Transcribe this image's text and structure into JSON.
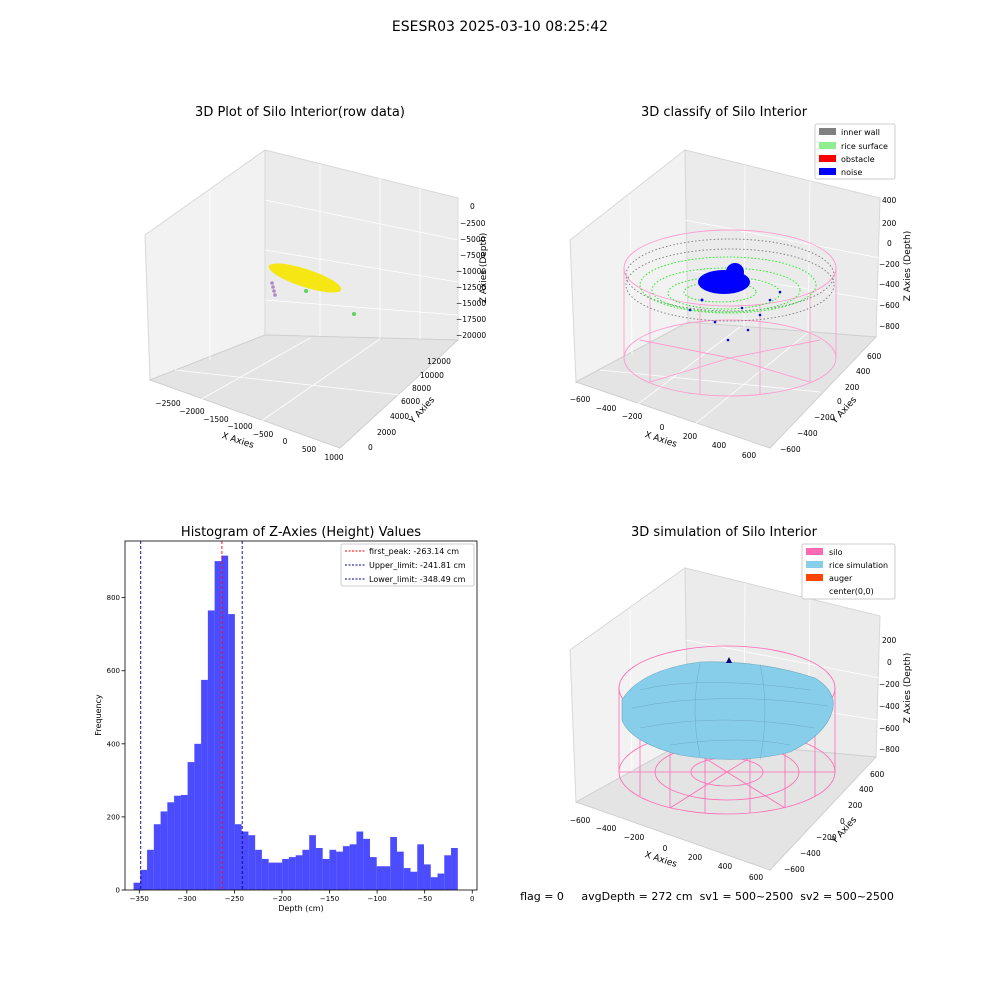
{
  "figure": {
    "suptitle": "ESESR03 2025-03-10 08:25:42",
    "footer": "flag = 0     avgDepth = 272 cm  sv1 = 500~2500  sv2 = 500~2500"
  },
  "chart_data": [
    {
      "type": "scatter",
      "projection": "3d",
      "title": "3D Plot of Silo Interior(row data)",
      "xlabel": "X Axies",
      "ylabel": "Y Axies",
      "zlabel": "Z Axies (Depth)",
      "x_ticks": [
        "−2500",
        "−2000",
        "−1500",
        "−1000",
        "−500",
        "0",
        "500",
        "1000"
      ],
      "y_ticks": [
        "0",
        "2000",
        "4000",
        "6000",
        "8000",
        "10000",
        "12000"
      ],
      "z_ticks": [
        "0",
        "−2500",
        "−5000",
        "−7500",
        "−10000",
        "−12500",
        "−15000",
        "−17500",
        "−20000"
      ],
      "grid": true,
      "colors": {
        "main": "#f5e614",
        "scatter_green": "#5cd65c",
        "scatter_purple": "#b088c8"
      }
    },
    {
      "type": "scatter",
      "projection": "3d",
      "title": "3D classify of Silo Interior",
      "xlabel": "X Axies",
      "ylabel": "Y Axies",
      "zlabel": "Z Axies (Depth)",
      "x_ticks": [
        "−600",
        "−400",
        "−200",
        "0",
        "200",
        "400",
        "600"
      ],
      "y_ticks": [
        "−600",
        "−400",
        "−200",
        "0",
        "200",
        "400",
        "600"
      ],
      "z_ticks": [
        "400",
        "200",
        "0",
        "−200",
        "−400",
        "−600",
        "−800"
      ],
      "legend": [
        {
          "label": "inner wall",
          "color": "#808080"
        },
        {
          "label": "rice surface",
          "color": "#90ee90"
        },
        {
          "label": "obstacle",
          "color": "#ff0000"
        },
        {
          "label": "noise",
          "color": "#0000ff"
        }
      ],
      "legend_position": "upper-right",
      "grid": true
    },
    {
      "type": "bar",
      "title": "Histogram of Z-Axies (Height) Values",
      "xlabel": "Depth (cm)",
      "ylabel": "Frequency",
      "xlim": [
        -365,
        5
      ],
      "ylim": [
        0,
        955
      ],
      "x_ticks": [
        -350,
        -300,
        -250,
        -200,
        -150,
        -100,
        -50,
        0
      ],
      "x_tick_labels": [
        "−350",
        "−300",
        "−250",
        "−200",
        "−150",
        "−100",
        "−50",
        "0"
      ],
      "y_ticks": [
        0,
        200,
        400,
        600,
        800
      ],
      "y_tick_labels": [
        "0",
        "200",
        "400",
        "600",
        "800"
      ],
      "bin_start": -356,
      "bin_width": 7.1,
      "values": [
        20,
        55,
        110,
        180,
        215,
        240,
        258,
        260,
        350,
        400,
        575,
        765,
        900,
        915,
        755,
        180,
        160,
        150,
        110,
        85,
        75,
        75,
        85,
        90,
        95,
        110,
        150,
        115,
        85,
        110,
        105,
        120,
        125,
        160,
        140,
        90,
        65,
        65,
        145,
        105,
        60,
        50,
        125,
        70,
        35,
        45,
        95,
        115
      ],
      "bar_color": "#0000ff",
      "lines": [
        {
          "label": "first_peak: -263.14 cm",
          "x": -263.14,
          "color": "#ff0000"
        },
        {
          "label": "Upper_limit: -241.81 cm",
          "x": -241.81,
          "color": "#00008b"
        },
        {
          "label": "Lower_limit: -348.49 cm",
          "x": -348.49,
          "color": "#00008b"
        }
      ],
      "legend_position": "upper-right"
    },
    {
      "type": "surface",
      "projection": "3d",
      "title": "3D simulation of Silo Interior",
      "xlabel": "X Axies",
      "ylabel": "Y Axies",
      "zlabel": "Z Axies (Depth)",
      "x_ticks": [
        "−600",
        "−400",
        "−200",
        "0",
        "200",
        "400",
        "600"
      ],
      "y_ticks": [
        "−600",
        "−400",
        "−200",
        "0",
        "200",
        "400",
        "600"
      ],
      "z_ticks": [
        "200",
        "0",
        "−200",
        "−400",
        "−600",
        "−800"
      ],
      "legend": [
        {
          "label": "silo",
          "color": "#ff69b4"
        },
        {
          "label": "rice simulation",
          "color": "#87ceeb"
        },
        {
          "label": "auger",
          "color": "#ff4500"
        },
        {
          "label": "center(0,0)",
          "color": ""
        }
      ],
      "legend_position": "upper-right",
      "grid": true
    }
  ]
}
